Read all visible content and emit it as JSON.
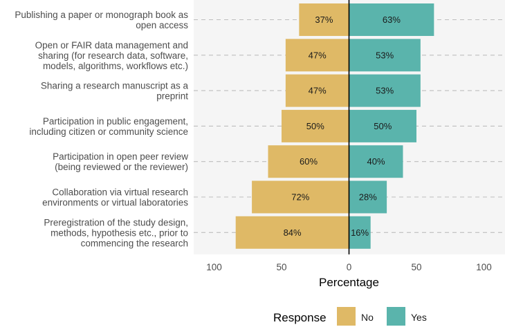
{
  "chart_data": {
    "type": "bar",
    "orientation": "horizontal-diverging",
    "categories": [
      [
        "Publishing a paper or monograph book as",
        "open access"
      ],
      [
        "Open or FAIR data management and",
        "sharing (for research data, software,",
        "models, algorithms, workflows etc.)"
      ],
      [
        "Sharing a research manuscript as a",
        "preprint"
      ],
      [
        "Participation in public engagement,",
        "including citizen or community science"
      ],
      [
        "Participation in open peer review",
        "(being reviewed or the reviewer)"
      ],
      [
        "Collaboration via virtual research",
        "environments or virtual laboratories"
      ],
      [
        "Preregistration of the study design,",
        "methods, hypothesis etc., prior to",
        "commencing the research"
      ]
    ],
    "series": [
      {
        "name": "No",
        "color": "#dfb966",
        "values": [
          37,
          47,
          47,
          50,
          60,
          72,
          84
        ],
        "labels": [
          "37%",
          "47%",
          "47%",
          "50%",
          "60%",
          "72%",
          "84%"
        ]
      },
      {
        "name": "Yes",
        "color": "#5ab4ac",
        "values": [
          63,
          53,
          53,
          50,
          40,
          28,
          16
        ],
        "labels": [
          "63%",
          "53%",
          "53%",
          "50%",
          "40%",
          "28%",
          "16%"
        ]
      }
    ],
    "xlabel": "Percentage",
    "xlim": [
      -100,
      100
    ],
    "xticks": [
      -100,
      -50,
      0,
      50,
      100
    ],
    "xtick_labels": [
      "100",
      "50",
      "0",
      "50",
      "100"
    ],
    "legend": {
      "title": "Response",
      "position": "bottom"
    },
    "panel_background": "#f5f5f5",
    "gridline_color": "#bdbdbd"
  }
}
